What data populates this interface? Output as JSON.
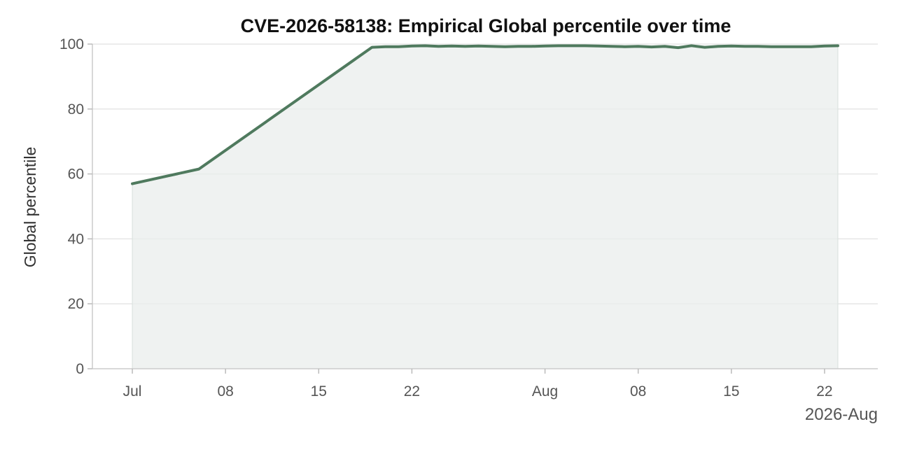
{
  "chart_data": {
    "type": "area",
    "title": "CVE-2026-58138: Empirical Global percentile over time",
    "xlabel": "",
    "ylabel": "Global percentile",
    "x_offset_label": "2026-Aug",
    "x_ticks": [
      {
        "date": "2026-07-01",
        "label": "Jul"
      },
      {
        "date": "2026-07-08",
        "label": "08"
      },
      {
        "date": "2026-07-15",
        "label": "15"
      },
      {
        "date": "2026-07-22",
        "label": "22"
      },
      {
        "date": "2026-08-01",
        "label": "Aug"
      },
      {
        "date": "2026-08-08",
        "label": "08"
      },
      {
        "date": "2026-08-15",
        "label": "15"
      },
      {
        "date": "2026-08-22",
        "label": "22"
      }
    ],
    "y_ticks": [
      0,
      20,
      40,
      60,
      80,
      100
    ],
    "xlim": [
      "2026-06-28",
      "2026-08-26"
    ],
    "ylim": [
      0,
      100
    ],
    "grid": "horizontal",
    "colors": {
      "line": "#4f7a5e",
      "fill": "#e9eeec"
    },
    "series": [
      {
        "name": "",
        "x": [
          "2026-07-01",
          "2026-07-06",
          "2026-07-19",
          "2026-07-20",
          "2026-07-21",
          "2026-07-22",
          "2026-07-23",
          "2026-07-24",
          "2026-07-25",
          "2026-07-26",
          "2026-07-27",
          "2026-07-28",
          "2026-07-29",
          "2026-07-30",
          "2026-07-31",
          "2026-08-01",
          "2026-08-02",
          "2026-08-03",
          "2026-08-04",
          "2026-08-05",
          "2026-08-06",
          "2026-08-07",
          "2026-08-08",
          "2026-08-09",
          "2026-08-10",
          "2026-08-11",
          "2026-08-12",
          "2026-08-13",
          "2026-08-14",
          "2026-08-15",
          "2026-08-16",
          "2026-08-17",
          "2026-08-18",
          "2026-08-19",
          "2026-08-20",
          "2026-08-21",
          "2026-08-22",
          "2026-08-23"
        ],
        "y": [
          57.0,
          61.5,
          99.0,
          99.2,
          99.2,
          99.4,
          99.5,
          99.3,
          99.4,
          99.3,
          99.4,
          99.3,
          99.2,
          99.3,
          99.3,
          99.4,
          99.5,
          99.5,
          99.5,
          99.4,
          99.3,
          99.2,
          99.3,
          99.1,
          99.3,
          98.9,
          99.5,
          99.0,
          99.3,
          99.4,
          99.3,
          99.3,
          99.2,
          99.2,
          99.2,
          99.2,
          99.4,
          99.5
        ]
      }
    ]
  }
}
